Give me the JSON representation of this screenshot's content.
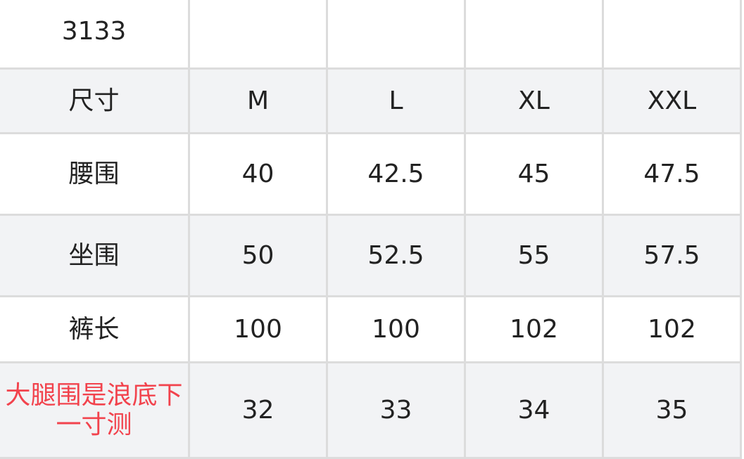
{
  "table": {
    "rows": [
      {
        "cells": [
          "3133",
          "",
          "",
          "",
          ""
        ]
      },
      {
        "cells": [
          "尺寸",
          "M",
          "L",
          "XL",
          "XXL"
        ]
      },
      {
        "cells": [
          "腰围",
          "40",
          "42.5",
          "45",
          "47.5"
        ]
      },
      {
        "cells": [
          "坐围",
          "50",
          "52.5",
          "55",
          "57.5"
        ]
      },
      {
        "cells": [
          "裤长",
          "100",
          "100",
          "102",
          "102"
        ]
      },
      {
        "cells": [
          "大腿围是浪底下一寸测",
          "32",
          "33",
          "34",
          "35"
        ]
      }
    ],
    "highlight_color": "#f2434d"
  }
}
